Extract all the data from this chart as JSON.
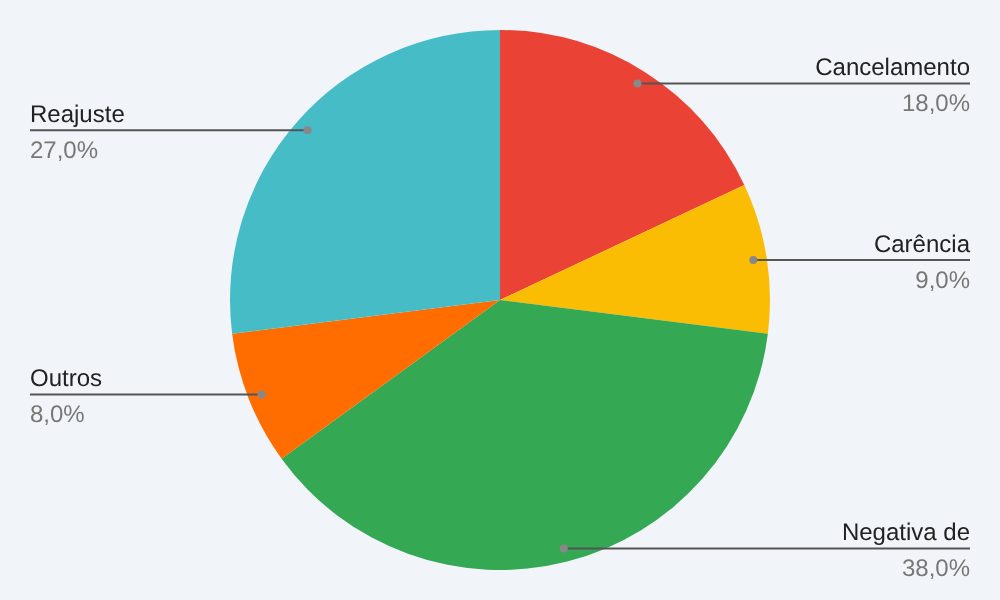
{
  "chart_data": {
    "type": "pie",
    "categories": [
      "Cancelamento",
      "Carência",
      "Negativa de",
      "Outros",
      "Reajuste"
    ],
    "values": [
      18,
      9,
      38,
      8,
      27
    ],
    "value_labels": [
      "18,0%",
      "9,0%",
      "38,0%",
      "8,0%",
      "27,0%"
    ],
    "colors": [
      "#ea4335",
      "#fbbc04",
      "#34a853",
      "#ff6d01",
      "#46bdc6"
    ],
    "legend": false
  }
}
